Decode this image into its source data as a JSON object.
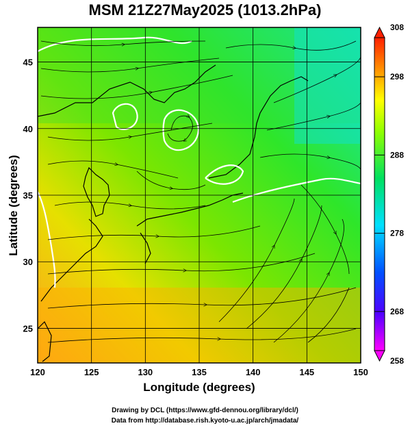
{
  "title": "MSM 21Z27May2025 (1013.2hPa)",
  "xlabel": "Longitude (degrees)",
  "ylabel": "Latitude  (degrees)",
  "credits": {
    "line1": "Drawing by DCL (https://www.gfd-dennou.org/library/dcl/)",
    "line2": "Data from http://database.rish.kyoto-u.ac.jp/arch/jmadata/"
  },
  "map": {
    "lon_range": [
      120,
      150
    ],
    "lat_range": [
      22.4,
      47.6
    ],
    "lon_ticks": [
      "120",
      "125",
      "130",
      "135",
      "140",
      "145",
      "150"
    ],
    "lat_ticks": [
      "25",
      "30",
      "35",
      "40",
      "45"
    ],
    "grid_lon": [
      120,
      125,
      130,
      135,
      140,
      145,
      150
    ],
    "grid_lat": [
      25,
      30,
      35,
      40,
      45
    ]
  },
  "colorbar": {
    "ticks": [
      "308",
      "298",
      "288",
      "278",
      "268",
      "258"
    ],
    "range": [
      258,
      308
    ],
    "colors": [
      "#ff00ff",
      "#0000ff",
      "#00ffff",
      "#00ff00",
      "#ffff00",
      "#ff8000",
      "#ff0000"
    ]
  }
}
